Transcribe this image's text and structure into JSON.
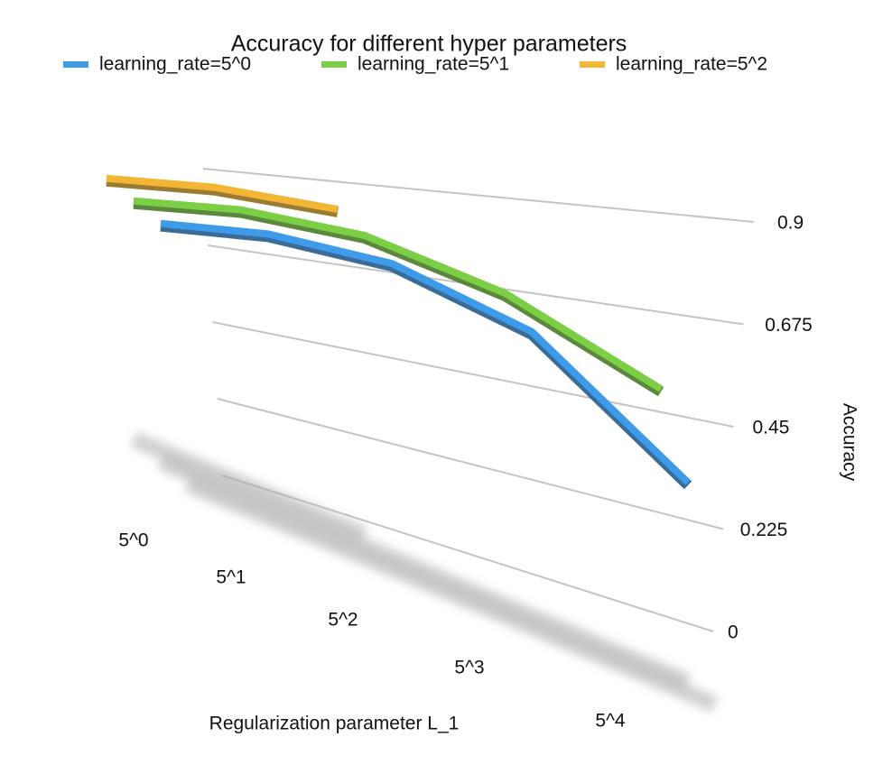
{
  "chart_data": {
    "type": "line3d",
    "title": "Accuracy for different hyper parameters",
    "x_label": "Regularization parameter L_1",
    "y_label": "Accuracy",
    "categories": [
      "5^0",
      "5^1",
      "5^2",
      "5^3",
      "5^4"
    ],
    "series": [
      {
        "name": "learning_rate=5^0",
        "color": "#3d9be9",
        "values": [
          0.92,
          0.91,
          0.87,
          0.76,
          0.5
        ]
      },
      {
        "name": "learning_rate=5^1",
        "color": "#7ccf45",
        "values": [
          0.92,
          0.915,
          0.885,
          0.8,
          0.66
        ]
      },
      {
        "name": "learning_rate=5^2",
        "color": "#f2b634",
        "values": [
          0.92,
          0.915,
          0.895,
          null,
          null
        ]
      }
    ],
    "ylim": [
      0,
      0.9
    ],
    "yticks": [
      0,
      0.225,
      0.45,
      0.675,
      0.9
    ],
    "grid": true,
    "legend": "top"
  }
}
